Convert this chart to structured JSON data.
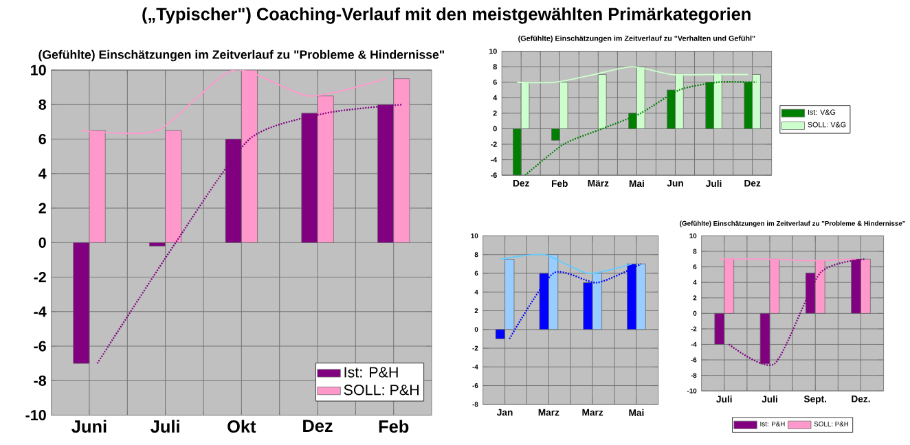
{
  "chart_data": [
    {
      "type": "other",
      "title": "(„Typischer\") Coaching-Verlauf mit den meistgewählten Primärkategorien"
    },
    {
      "type": "bar",
      "title": "(Gefühlte) Einschätzungen im Zeitverlauf zu \"Probleme & Hindernisse\"",
      "categories": [
        "Juni",
        "Juli",
        "Okt",
        "Dez",
        "Feb"
      ],
      "series": [
        {
          "name": "Ist: P&H",
          "color": "#800080",
          "values": [
            -7,
            -0.2,
            6,
            7.5,
            8
          ]
        },
        {
          "name": "SOLL: P&H",
          "color": "#ff99cc",
          "values": [
            6.5,
            6.5,
            10,
            8.5,
            9.5
          ]
        },
        {
          "type": "line",
          "color": "#800080",
          "line_style": "dotted",
          "values": [
            -7,
            -0.2,
            6,
            7.5,
            8
          ]
        },
        {
          "type": "line",
          "color": "#ff99cc",
          "line_style": "solid",
          "values": [
            6.5,
            6.5,
            10,
            8.5,
            9.5
          ]
        }
      ],
      "ylim": [
        -10,
        10
      ],
      "yticks": [
        -10,
        -8,
        -6,
        -4,
        -2,
        0,
        2,
        4,
        6,
        8,
        10
      ],
      "grid": true,
      "legend": "bottom right"
    },
    {
      "type": "bar",
      "title": "(Gefühlte) Einschätzungen im Zeitverlauf zu \"Verhalten und Gefühl\"",
      "categories": [
        "Dez",
        "Feb",
        "März",
        "Mai",
        "Jun",
        "Juli",
        "Dez"
      ],
      "series": [
        {
          "name": "Ist: V&G",
          "color": "#008000",
          "values": [
            -6,
            -1.5,
            null,
            2,
            5,
            6,
            6
          ]
        },
        {
          "name": "SOLL: V&G",
          "color": "#ccffcc",
          "values": [
            6,
            6,
            7,
            8,
            7,
            7,
            7
          ]
        },
        {
          "type": "line",
          "color": "#008000",
          "line_style": "dotted",
          "values": [
            -6,
            -2,
            0,
            2,
            5,
            6,
            6
          ]
        },
        {
          "type": "line",
          "color": "#ccffcc",
          "line_style": "solid",
          "values": [
            6,
            6,
            7,
            8,
            7,
            7,
            7
          ]
        }
      ],
      "ylim": [
        -6,
        10
      ],
      "yticks": [
        -6,
        -4,
        -2,
        0,
        2,
        4,
        6,
        8,
        10
      ],
      "grid": true,
      "legend": "right"
    },
    {
      "type": "bar",
      "categories": [
        "Jan",
        "Marz",
        "Marz",
        "Mai"
      ],
      "series": [
        {
          "color": "#0000ff",
          "values": [
            -1,
            6,
            5,
            7
          ]
        },
        {
          "color": "#99ccff",
          "values": [
            7.5,
            8,
            6,
            7
          ]
        },
        {
          "type": "line",
          "color": "#0000ff",
          "line_style": "dotted",
          "values": [
            -1,
            6,
            5,
            7
          ]
        },
        {
          "type": "line",
          "color": "#66ccff",
          "line_style": "solid",
          "values": [
            7.5,
            8,
            6,
            7
          ]
        }
      ],
      "ylim": [
        -8,
        10
      ],
      "yticks": [
        -8,
        -6,
        -4,
        -2,
        0,
        2,
        4,
        6,
        8,
        10
      ],
      "grid": true
    },
    {
      "type": "bar",
      "title": "(Gefühlte) Einschätzungen im Zeitverlauf zu \"Probleme & Hindernisse\"",
      "categories": [
        "Juli",
        "Juli",
        "Sept.",
        "Dez."
      ],
      "series": [
        {
          "name": "Ist: P&H",
          "color": "#800080",
          "values": [
            -4,
            -6.5,
            5.2,
            7
          ]
        },
        {
          "name": "SOLL: P&H",
          "color": "#ff99cc",
          "values": [
            7,
            7,
            6.8,
            7
          ]
        },
        {
          "type": "line",
          "color": "#800080",
          "line_style": "dotted",
          "values": [
            -4,
            -6.5,
            5.2,
            7
          ]
        },
        {
          "type": "line",
          "color": "#ff99cc",
          "line_style": "solid",
          "values": [
            7,
            7,
            6.8,
            7
          ]
        }
      ],
      "ylim": [
        -10,
        10
      ],
      "yticks": [
        -10,
        -8,
        -6,
        -4,
        -2,
        0,
        2,
        4,
        6,
        8,
        10
      ],
      "grid": true,
      "legend": "bottom"
    }
  ]
}
